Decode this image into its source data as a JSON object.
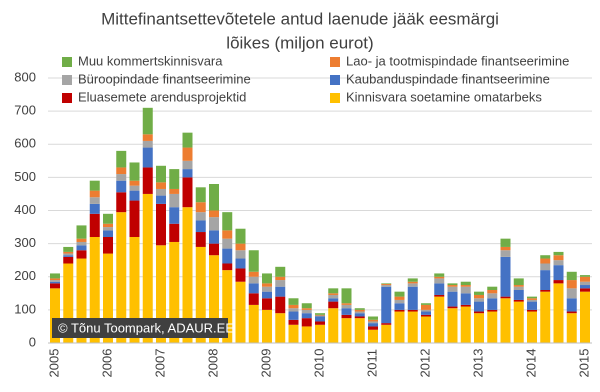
{
  "chart_data": {
    "type": "stacked_bar",
    "title": [
      "Mittefinantsettevõtetele antud laenude jääk eesmärgi",
      "lõikes (miljon eurot)"
    ],
    "annotation": "© Tõnu Toompark, ADAUR.EE",
    "categories": [
      "2005",
      null,
      null,
      null,
      "2006",
      null,
      null,
      null,
      "2007",
      null,
      null,
      null,
      "2008",
      null,
      null,
      null,
      "2009",
      null,
      null,
      null,
      "2010",
      null,
      null,
      null,
      "2011",
      null,
      null,
      null,
      "2012",
      null,
      null,
      null,
      "2013",
      null,
      null,
      null,
      "2014",
      null,
      null,
      null,
      "2015"
    ],
    "series": [
      {
        "name": "Kinnisvara soetamine omatarbeks",
        "color": "#FFC000",
        "values": [
          165,
          240,
          255,
          320,
          270,
          395,
          320,
          450,
          295,
          305,
          410,
          290,
          265,
          220,
          185,
          115,
          100,
          90,
          55,
          50,
          55,
          105,
          75,
          75,
          40,
          55,
          95,
          95,
          80,
          140,
          105,
          110,
          90,
          95,
          135,
          125,
          95,
          155,
          180,
          90,
          155
        ]
      },
      {
        "name": "Eluasemete arendusprojektid",
        "color": "#C00000",
        "values": [
          15,
          20,
          25,
          70,
          50,
          60,
          110,
          80,
          125,
          55,
          90,
          45,
          35,
          20,
          40,
          35,
          35,
          50,
          15,
          25,
          10,
          20,
          10,
          5,
          10,
          5,
          5,
          5,
          5,
          5,
          5,
          5,
          5,
          5,
          5,
          5,
          5,
          5,
          10,
          5,
          10
        ]
      },
      {
        "name": "Kaubanduspindade finantseerimine",
        "color": "#4472C4",
        "values": [
          5,
          5,
          15,
          30,
          20,
          35,
          30,
          60,
          25,
          50,
          25,
          35,
          40,
          45,
          30,
          30,
          20,
          30,
          25,
          15,
          15,
          10,
          20,
          10,
          10,
          110,
          20,
          70,
          10,
          35,
          45,
          35,
          30,
          35,
          120,
          30,
          25,
          60,
          45,
          40,
          10
        ]
      },
      {
        "name": "Büroopindade finantseerimine",
        "color": "#A5A5A5",
        "values": [
          5,
          5,
          10,
          20,
          10,
          20,
          15,
          20,
          20,
          40,
          25,
          25,
          40,
          30,
          25,
          20,
          15,
          20,
          10,
          10,
          3,
          10,
          10,
          5,
          5,
          5,
          10,
          10,
          5,
          15,
          15,
          20,
          10,
          15,
          20,
          10,
          5,
          20,
          15,
          30,
          10
        ]
      },
      {
        "name": "Lao- ja tootmispindade  finantseerimine",
        "color": "#ED7D31",
        "values": [
          5,
          5,
          10,
          20,
          10,
          20,
          15,
          20,
          20,
          15,
          40,
          30,
          20,
          25,
          20,
          15,
          10,
          10,
          10,
          5,
          2,
          5,
          5,
          5,
          5,
          3,
          10,
          5,
          15,
          5,
          5,
          5,
          10,
          10,
          10,
          5,
          5,
          15,
          15,
          25,
          15
        ]
      },
      {
        "name": "Muu kommertskinnisvara",
        "color": "#70AD47",
        "values": [
          15,
          15,
          40,
          30,
          30,
          50,
          55,
          80,
          50,
          60,
          45,
          45,
          80,
          55,
          45,
          65,
          30,
          30,
          20,
          15,
          5,
          15,
          45,
          5,
          10,
          2,
          15,
          10,
          5,
          10,
          5,
          10,
          10,
          10,
          25,
          20,
          5,
          10,
          10,
          25,
          5
        ]
      }
    ],
    "ylim": [
      0,
      800
    ],
    "yticks": [
      0,
      100,
      200,
      300,
      400,
      500,
      600,
      700,
      800
    ],
    "grid": true
  }
}
